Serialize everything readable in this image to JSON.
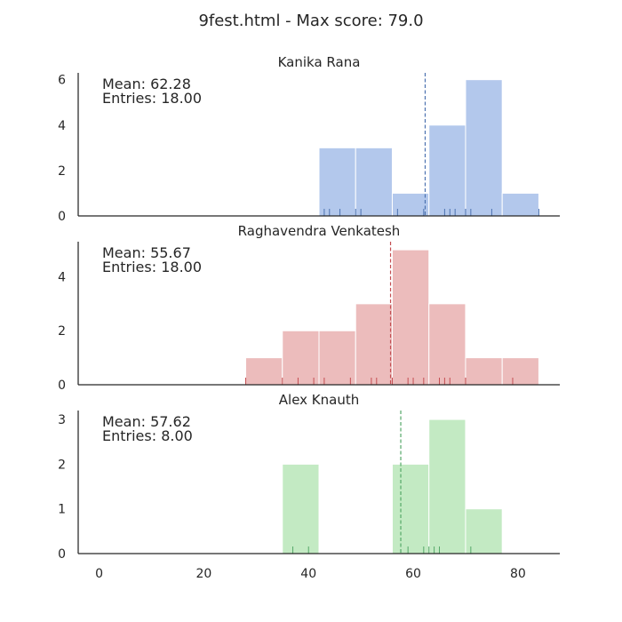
{
  "figure": {
    "title": "9fest.html - Max score: 79.0"
  },
  "chart_data": [
    {
      "type": "histogram",
      "title": "Kanika Rana",
      "mean_label": "Mean: 62.28",
      "entries_label": "Entries: 18.00",
      "color": "#4c72b0",
      "bar_color": "#b3c8ec",
      "mean": 62.28,
      "bins": [
        [
          42,
          49,
          3
        ],
        [
          49,
          56,
          3
        ],
        [
          56,
          63,
          1
        ],
        [
          63,
          70,
          4
        ],
        [
          70,
          77,
          6
        ],
        [
          77,
          84,
          1
        ]
      ],
      "rug": [
        43,
        44,
        46,
        49,
        50,
        57,
        62,
        66,
        67,
        68,
        70,
        71,
        75,
        84
      ],
      "ylim": [
        0,
        6.3
      ],
      "yticks": [
        0,
        2,
        4,
        6
      ]
    },
    {
      "type": "histogram",
      "title": "Raghavendra Venkatesh",
      "mean_label": "Mean: 55.67",
      "entries_label": "Entries: 18.00",
      "color": "#c44e52",
      "bar_color": "#ecbcbc",
      "mean": 55.67,
      "bins": [
        [
          28,
          35,
          1
        ],
        [
          35,
          42,
          2
        ],
        [
          42,
          49,
          2
        ],
        [
          49,
          56,
          3
        ],
        [
          56,
          63,
          5
        ],
        [
          63,
          70,
          3
        ],
        [
          70,
          77,
          1
        ],
        [
          77,
          84,
          1
        ]
      ],
      "rug": [
        28,
        35,
        38,
        41,
        43,
        48,
        52,
        53,
        56,
        59,
        60,
        62,
        65,
        66,
        67,
        70,
        79
      ],
      "ylim": [
        0,
        5.3
      ],
      "yticks": [
        0,
        2,
        4
      ]
    },
    {
      "type": "histogram",
      "title": "Alex Knauth",
      "mean_label": "Mean: 57.62",
      "entries_label": "Entries: 8.00",
      "color": "#55a868",
      "bar_color": "#c3eac3",
      "mean": 57.62,
      "bins": [
        [
          35,
          42,
          2
        ],
        [
          56,
          63,
          2
        ],
        [
          63,
          70,
          3
        ],
        [
          70,
          77,
          1
        ]
      ],
      "rug": [
        37,
        40,
        59,
        62,
        63,
        64,
        65,
        71
      ],
      "ylim": [
        0,
        3.2
      ],
      "yticks": [
        0,
        1,
        2,
        3
      ]
    }
  ],
  "x_axis": {
    "ticks": [
      0,
      20,
      40,
      60,
      80
    ],
    "xlim": [
      -4,
      88
    ]
  }
}
